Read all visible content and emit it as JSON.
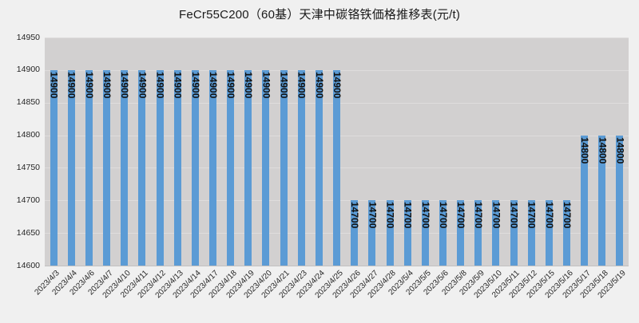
{
  "page": {
    "background": "#f0f0f0"
  },
  "chart_data": {
    "type": "bar",
    "title": "FeCr55C200（60基）天津中碳铬铁価格推移表(元/t)",
    "categories": [
      "2023/4/3",
      "2023/4/4",
      "2023/4/6",
      "2023/4/7",
      "2023/4/10",
      "2023/4/11",
      "2023/4/12",
      "2023/4/13",
      "2023/4/14",
      "2023/4/17",
      "2023/4/18",
      "2023/4/19",
      "2023/4/20",
      "2023/4/21",
      "2023/4/23",
      "2023/4/24",
      "2023/4/25",
      "2023/4/26",
      "2023/4/27",
      "2023/4/28",
      "2023/5/4",
      "2023/5/5",
      "2023/5/6",
      "2023/5/8",
      "2023/5/9",
      "2023/5/10",
      "2023/5/11",
      "2023/5/12",
      "2023/5/15",
      "2023/5/16",
      "2023/5/17",
      "2023/5/18",
      "2023/5/19"
    ],
    "values": [
      14900,
      14900,
      14900,
      14900,
      14900,
      14900,
      14900,
      14900,
      14900,
      14900,
      14900,
      14900,
      14900,
      14900,
      14900,
      14900,
      14900,
      14700,
      14700,
      14700,
      14700,
      14700,
      14700,
      14700,
      14700,
      14700,
      14700,
      14700,
      14700,
      14700,
      14800,
      14800,
      14800
    ],
    "xlabel": "",
    "ylabel": "",
    "ylim": [
      14600,
      14950
    ],
    "ytick_step": 50,
    "yticks": [
      14950,
      14900,
      14850,
      14800,
      14750,
      14700,
      14650,
      14600
    ],
    "grid": true,
    "legend": false,
    "data_labels": true,
    "data_label_rotation": "vertical-downward",
    "xlabel_rotation": -45,
    "bar_color": "#5b9bd5",
    "plot_background": "#d2d0d0",
    "gridline_color": "#dedcdc",
    "text_color": "#262626"
  }
}
